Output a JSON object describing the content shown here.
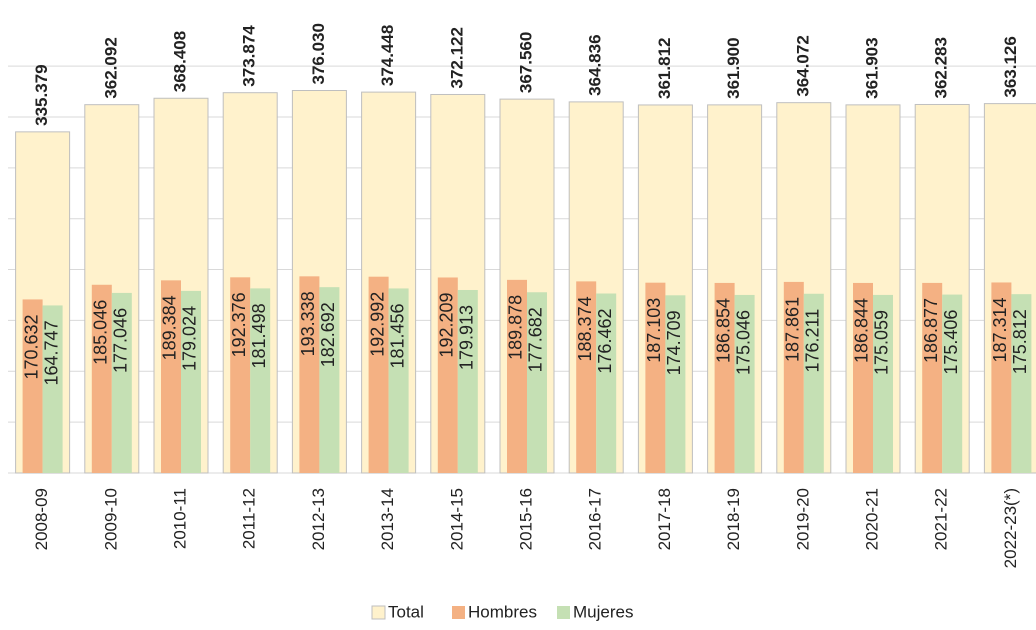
{
  "chart_data": {
    "type": "bar",
    "categories": [
      "2008-09",
      "2009-10",
      "2010-11",
      "2011-12",
      "2012-13",
      "2013-14",
      "2014-15",
      "2015-16",
      "2016-17",
      "2017-18",
      "2018-19",
      "2019-20",
      "2020-21",
      "2021-22",
      "2022-23(*)"
    ],
    "series": [
      {
        "name": "Total",
        "color": "#fff2cc",
        "values": [
          335379,
          362092,
          368408,
          373874,
          376030,
          374448,
          372122,
          367560,
          364836,
          361812,
          361900,
          364072,
          361903,
          362283,
          363126
        ],
        "value_labels": [
          "335.379",
          "362.092",
          "368.408",
          "373.874",
          "376.030",
          "374.448",
          "372.122",
          "367.560",
          "364.836",
          "361.812",
          "361.900",
          "364.072",
          "361.903",
          "362.283",
          "363.126"
        ]
      },
      {
        "name": "Hombres",
        "color": "#f4b183",
        "values": [
          170632,
          185046,
          189384,
          192376,
          193338,
          192992,
          192209,
          189878,
          188374,
          187103,
          186854,
          187861,
          186844,
          186877,
          187314
        ],
        "value_labels": [
          "170.632",
          "185.046",
          "189.384",
          "192.376",
          "193.338",
          "192.992",
          "192.209",
          "189.878",
          "188.374",
          "187.103",
          "186.854",
          "187.861",
          "186.844",
          "186.877",
          "187.314"
        ]
      },
      {
        "name": "Mujeres",
        "color": "#c5e0b4",
        "values": [
          164747,
          177046,
          179024,
          181498,
          182692,
          181456,
          179913,
          177682,
          176462,
          174709,
          175046,
          176211,
          175059,
          175406,
          175812
        ],
        "value_labels": [
          "164.747",
          "177.046",
          "179.024",
          "181.498",
          "182.692",
          "181.456",
          "179.913",
          "177.682",
          "176.462",
          "174.709",
          "175.046",
          "176.211",
          "175.059",
          "175.406",
          "175.812"
        ]
      }
    ],
    "ylim": [
      0,
      465000
    ],
    "yticks": [
      0,
      50000,
      100000,
      150000,
      200000,
      250000,
      300000,
      350000,
      400000
    ],
    "grid": true,
    "legend": "bottom"
  }
}
